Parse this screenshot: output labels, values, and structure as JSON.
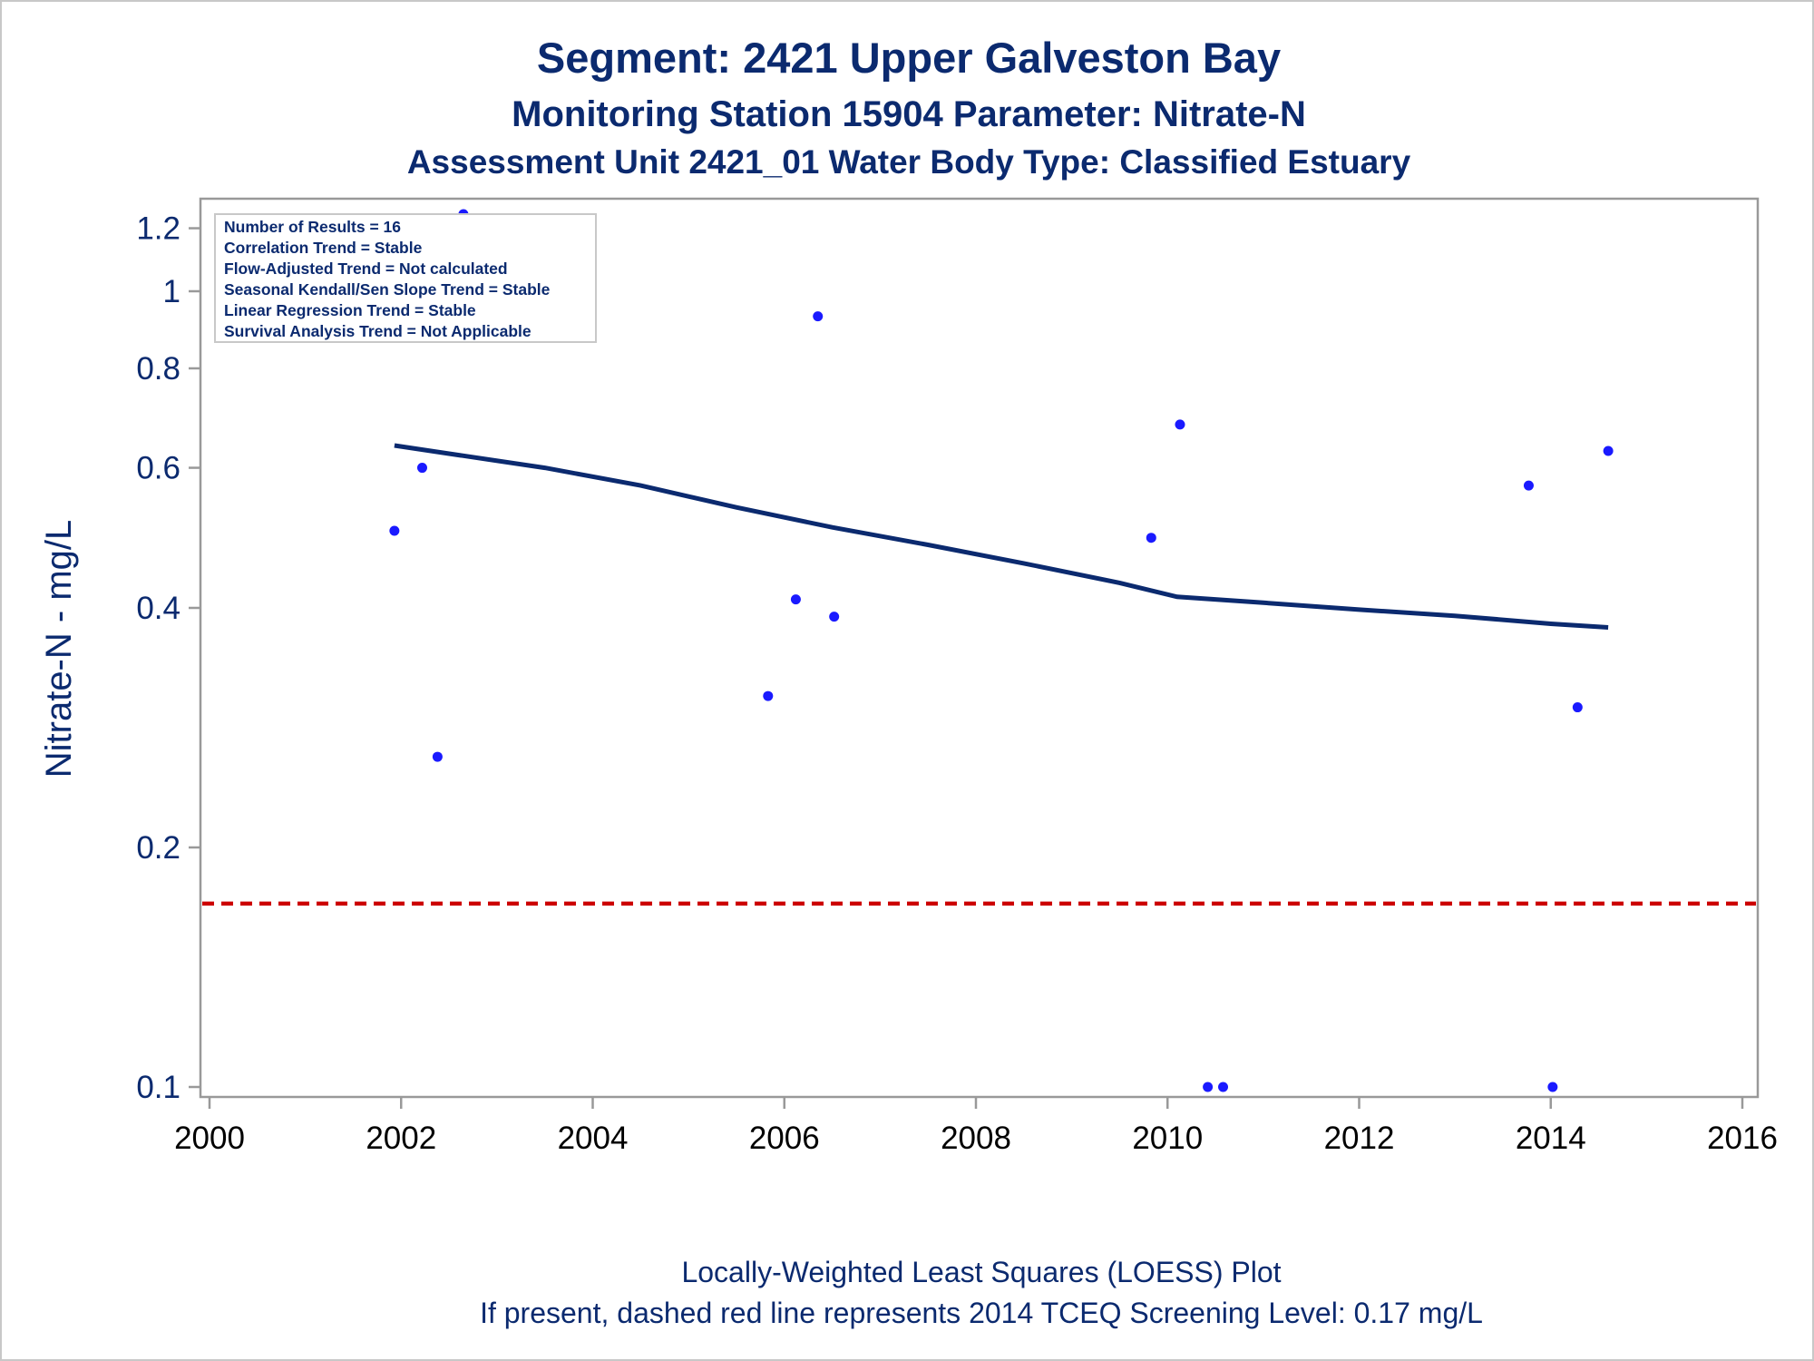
{
  "chart_data": {
    "type": "scatter",
    "title": "Segment: 2421  Upper Galveston Bay",
    "subtitle": "Monitoring Station 15904 Parameter: Nitrate-N",
    "subtitle2": "Assessment Unit 2421_01   Water Body Type: Classified Estuary",
    "xlabel": "",
    "ylabel": "Nitrate-N - mg/L",
    "xlim": [
      2000,
      2016
    ],
    "ylim": [
      0.1,
      1.25
    ],
    "yscale": "log",
    "xticks": [
      "2000",
      "2002",
      "2004",
      "2006",
      "2008",
      "2010",
      "2012",
      "2014",
      "2016"
    ],
    "yticks": [
      "0.1",
      "0.2",
      "0.4",
      "0.6",
      "0.8",
      "1",
      "1.2"
    ],
    "points": [
      {
        "x": 2001.93,
        "y": 0.5
      },
      {
        "x": 2002.22,
        "y": 0.6
      },
      {
        "x": 2002.38,
        "y": 0.26
      },
      {
        "x": 2002.65,
        "y": 1.25
      },
      {
        "x": 2005.83,
        "y": 0.31
      },
      {
        "x": 2006.12,
        "y": 0.41
      },
      {
        "x": 2006.35,
        "y": 0.93
      },
      {
        "x": 2006.52,
        "y": 0.39
      },
      {
        "x": 2009.83,
        "y": 0.49
      },
      {
        "x": 2010.13,
        "y": 0.68
      },
      {
        "x": 2010.42,
        "y": 0.1
      },
      {
        "x": 2010.58,
        "y": 0.1
      },
      {
        "x": 2013.77,
        "y": 0.57
      },
      {
        "x": 2014.02,
        "y": 0.1
      },
      {
        "x": 2014.28,
        "y": 0.3
      },
      {
        "x": 2014.6,
        "y": 0.63
      }
    ],
    "loess": [
      {
        "x": 2001.93,
        "y": 0.64
      },
      {
        "x": 2002.5,
        "y": 0.625
      },
      {
        "x": 2003.5,
        "y": 0.6
      },
      {
        "x": 2004.5,
        "y": 0.57
      },
      {
        "x": 2005.5,
        "y": 0.535
      },
      {
        "x": 2006.5,
        "y": 0.505
      },
      {
        "x": 2007.5,
        "y": 0.48
      },
      {
        "x": 2008.5,
        "y": 0.455
      },
      {
        "x": 2009.5,
        "y": 0.43
      },
      {
        "x": 2010.1,
        "y": 0.413
      },
      {
        "x": 2011.0,
        "y": 0.406
      },
      {
        "x": 2012.0,
        "y": 0.398
      },
      {
        "x": 2013.0,
        "y": 0.391
      },
      {
        "x": 2014.0,
        "y": 0.382
      },
      {
        "x": 2014.6,
        "y": 0.378
      }
    ],
    "screening_level": 0.17,
    "colors": {
      "points": "#1a1aff",
      "loess": "#0b2a6f",
      "screening": "#cc0000",
      "text": "#0b2a6f",
      "axis": "#999999"
    },
    "grid": false,
    "stats_box": [
      "Number of Results = 16",
      "Correlation Trend = Stable",
      "Flow-Adjusted Trend = Not calculated",
      "Seasonal Kendall/Sen Slope Trend = Stable",
      "Linear Regression Trend = Stable",
      "Survival Analysis Trend = Not Applicable"
    ],
    "footnote1": "Locally-Weighted Least Squares (LOESS) Plot",
    "footnote2": "If present, dashed red line represents 2014 TCEQ Screening Level: 0.17 mg/L"
  }
}
